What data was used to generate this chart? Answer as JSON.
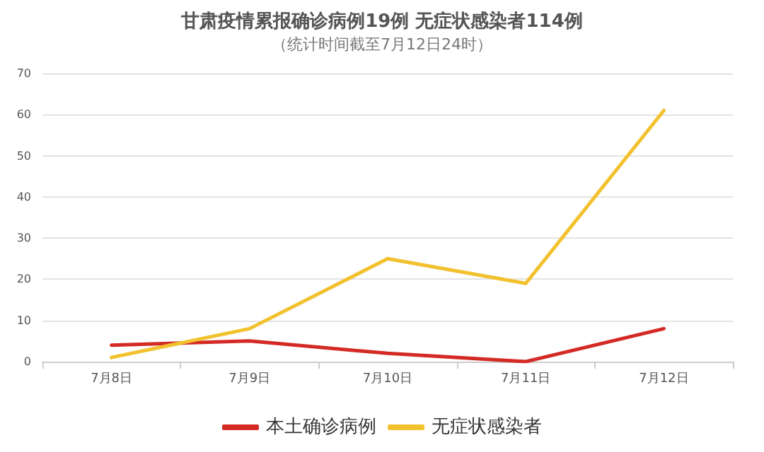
{
  "chart_data": {
    "type": "line",
    "title": "甘肃疫情累报确诊病例19例 无症状感染者114例",
    "subtitle": "（统计时间截至7月12日24时）",
    "categories": [
      "7月8日",
      "7月9日",
      "7月10日",
      "7月11日",
      "7月12日"
    ],
    "series": [
      {
        "name": "本土确诊病例",
        "color": "#d42a25",
        "values": [
          4,
          5,
          2,
          0,
          8
        ]
      },
      {
        "name": "无症状感染者",
        "color": "#f2c12e",
        "values": [
          1,
          8,
          25,
          19,
          61
        ]
      }
    ],
    "ylim": [
      0,
      70
    ],
    "yticks": [
      0,
      10,
      20,
      30,
      40,
      50,
      60,
      70
    ],
    "grid": "y",
    "legend": "bottom",
    "marker": "none",
    "line_style": "solid"
  }
}
